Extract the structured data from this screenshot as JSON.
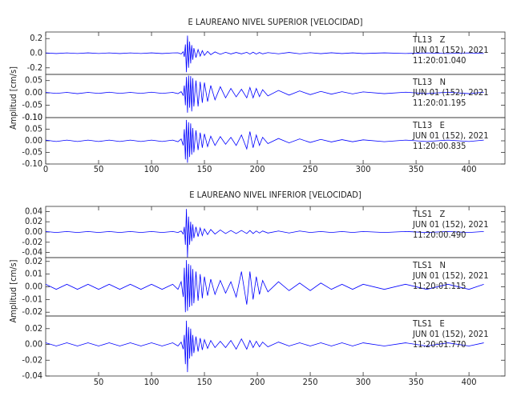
{
  "chart_data": [
    {
      "type": "line",
      "title": "E LAUREANO NIVEL SUPERIOR [VELOCIDAD]",
      "y_label": "Amplitud [cm/s]",
      "x": [
        0,
        10,
        20,
        30,
        40,
        50,
        60,
        70,
        80,
        90,
        100,
        110,
        120,
        125,
        128,
        130,
        131,
        132,
        133,
        134,
        135,
        136,
        137,
        138,
        139,
        140,
        142,
        144,
        146,
        148,
        150,
        153,
        156,
        160,
        165,
        170,
        175,
        180,
        185,
        190,
        193,
        196,
        199,
        202,
        205,
        210,
        220,
        230,
        240,
        250,
        260,
        270,
        280,
        290,
        300,
        320,
        340,
        360,
        380,
        400,
        414
      ],
      "xlim": [
        0,
        434
      ],
      "xticks": [
        0,
        50,
        100,
        150,
        200,
        250,
        300,
        350,
        400
      ],
      "series": [
        {
          "name": "TL13   Z",
          "date": "JUN 01 (152), 2021",
          "time": "11:20:01.040",
          "color": "#0000ff",
          "ylim": [
            -0.29,
            0.29
          ],
          "yticks": [
            0.2,
            {
              "value": 0,
              "label": "0.0"
            },
            -0.2
          ],
          "values": [
            0.004,
            -0.005,
            0.004,
            -0.004,
            0.005,
            -0.004,
            0.004,
            -0.005,
            0.004,
            -0.004,
            0.005,
            -0.005,
            0.004,
            0.005,
            -0.01,
            0.02,
            -0.05,
            0.12,
            -0.26,
            0.24,
            -0.2,
            0.16,
            -0.14,
            0.11,
            -0.09,
            0.07,
            -0.06,
            0.05,
            -0.04,
            0.035,
            -0.03,
            0.025,
            -0.02,
            0.018,
            -0.015,
            0.012,
            -0.01,
            0.01,
            -0.009,
            0.012,
            -0.012,
            0.014,
            -0.012,
            0.01,
            -0.009,
            0.008,
            -0.008,
            0.01,
            -0.008,
            0.007,
            -0.006,
            0.006,
            -0.005,
            0.005,
            -0.005,
            0.005,
            -0.004,
            0.004,
            -0.004,
            0.004,
            -0.004
          ]
        },
        {
          "name": "TL13   N",
          "date": "JUN 01 (152), 2021",
          "time": "11:20:01.195",
          "color": "#0000ff",
          "ylim": [
            -0.1,
            0.075
          ],
          "yticks": [
            0.05,
            {
              "value": 0,
              "label": "0.00"
            },
            -0.05,
            {
              "value": -0.1,
              "label": "-0.10"
            }
          ],
          "values": [
            0.002,
            -0.002,
            0.002,
            -0.003,
            0.002,
            -0.002,
            0.003,
            -0.002,
            0.002,
            -0.002,
            0.003,
            -0.002,
            0.002,
            -0.003,
            0.005,
            -0.01,
            0.03,
            -0.05,
            0.065,
            -0.08,
            0.07,
            -0.06,
            0.068,
            -0.075,
            0.06,
            -0.055,
            0.05,
            -0.055,
            0.045,
            -0.04,
            0.042,
            -0.035,
            0.03,
            -0.028,
            0.025,
            -0.02,
            0.018,
            -0.016,
            0.015,
            -0.02,
            0.022,
            -0.02,
            0.018,
            -0.015,
            0.013,
            -0.012,
            0.01,
            -0.009,
            0.008,
            -0.007,
            0.006,
            -0.005,
            0.005,
            -0.004,
            0.004,
            -0.003,
            0.003,
            -0.003,
            0.003,
            -0.003,
            0.003
          ]
        },
        {
          "name": "TL13   E",
          "date": "JUN 01 (152), 2021",
          "time": "11:20:00.835",
          "color": "#0000ff",
          "ylim": [
            -0.1,
            0.1
          ],
          "yticks": [
            {
              "value": 0.1,
              "label": "0.10"
            },
            0.05,
            {
              "value": 0,
              "label": "0.00"
            },
            -0.05,
            {
              "value": -0.1,
              "label": "-0.10"
            }
          ],
          "values": [
            0.003,
            -0.003,
            0.003,
            -0.003,
            0.003,
            -0.003,
            0.003,
            -0.003,
            0.003,
            -0.003,
            0.003,
            -0.003,
            0.003,
            -0.004,
            0.008,
            -0.02,
            0.05,
            -0.08,
            0.09,
            -0.095,
            0.08,
            -0.07,
            0.075,
            -0.06,
            0.055,
            -0.05,
            0.045,
            -0.04,
            0.035,
            -0.03,
            0.03,
            -0.025,
            0.02,
            -0.02,
            0.018,
            -0.015,
            0.015,
            -0.02,
            0.025,
            -0.035,
            0.04,
            -0.03,
            0.025,
            -0.02,
            0.015,
            -0.012,
            0.01,
            -0.009,
            0.008,
            -0.007,
            0.006,
            -0.005,
            0.005,
            -0.004,
            0.004,
            -0.004,
            0.003,
            -0.003,
            0.003,
            -0.003,
            0.003
          ]
        }
      ]
    },
    {
      "type": "line",
      "title": "E LAUREANO NIVEL INFERIOR [VELOCIDAD]",
      "y_label": "Amplitud [cm/s]",
      "x": [
        0,
        10,
        20,
        30,
        40,
        50,
        60,
        70,
        80,
        90,
        100,
        110,
        120,
        125,
        128,
        130,
        131,
        132,
        133,
        134,
        135,
        136,
        137,
        138,
        139,
        140,
        142,
        144,
        146,
        148,
        150,
        153,
        156,
        160,
        165,
        170,
        175,
        180,
        185,
        190,
        193,
        196,
        199,
        202,
        205,
        210,
        220,
        230,
        240,
        250,
        260,
        270,
        280,
        290,
        300,
        320,
        340,
        360,
        380,
        400,
        414
      ],
      "xlim": [
        0,
        434
      ],
      "xticks": [
        50,
        100,
        150,
        200,
        250,
        300,
        350,
        400
      ],
      "series": [
        {
          "name": "TLS1   Z",
          "date": "JUN 01 (152), 2021",
          "time": "11:20:00.490",
          "color": "#0000ff",
          "ylim": [
            -0.05,
            0.05
          ],
          "yticks": [
            0.04,
            0.02,
            {
              "value": 0,
              "label": "0.00"
            },
            -0.02,
            -0.04
          ],
          "values": [
            0.001,
            -0.001,
            0.001,
            -0.001,
            0.001,
            -0.001,
            0.001,
            -0.001,
            0.001,
            -0.001,
            0.001,
            -0.001,
            0.001,
            -0.001,
            0.002,
            -0.004,
            0.01,
            -0.025,
            0.045,
            -0.05,
            0.03,
            -0.025,
            0.02,
            -0.018,
            0.015,
            -0.012,
            0.01,
            -0.009,
            0.008,
            -0.007,
            0.006,
            -0.005,
            0.005,
            -0.004,
            0.004,
            -0.003,
            0.003,
            -0.003,
            0.003,
            -0.003,
            0.003,
            -0.003,
            0.002,
            -0.002,
            0.002,
            -0.002,
            0.002,
            -0.002,
            0.002,
            -0.001,
            0.001,
            -0.001,
            0.001,
            -0.001,
            0.001,
            -0.001,
            0.001,
            -0.001,
            0.001,
            -0.001,
            0.001
          ]
        },
        {
          "name": "TLS1   N",
          "date": "JUN 01 (152), 2021",
          "time": "11:20:01.115",
          "color": "#0000ff",
          "ylim": [
            -0.023,
            0.023
          ],
          "yticks": [
            0.02,
            0.01,
            {
              "value": 0,
              "label": "0.00"
            },
            -0.01,
            -0.02
          ],
          "values": [
            0.002,
            -0.002,
            0.002,
            -0.002,
            0.002,
            -0.002,
            0.002,
            -0.002,
            0.002,
            -0.002,
            0.002,
            -0.002,
            0.002,
            -0.002,
            0.004,
            -0.008,
            0.015,
            -0.02,
            0.021,
            -0.019,
            0.018,
            -0.016,
            0.017,
            -0.015,
            0.014,
            -0.013,
            0.012,
            -0.011,
            0.01,
            -0.009,
            0.008,
            -0.007,
            0.006,
            -0.006,
            0.005,
            -0.005,
            0.004,
            -0.008,
            0.012,
            -0.014,
            0.012,
            -0.01,
            0.008,
            -0.006,
            0.005,
            -0.004,
            0.004,
            -0.003,
            0.003,
            -0.003,
            0.003,
            -0.002,
            0.002,
            -0.002,
            0.002,
            -0.002,
            0.002,
            -0.002,
            0.002,
            -0.002,
            0.002
          ]
        },
        {
          "name": "TLS1   E",
          "date": "JUN 01 (152), 2021",
          "time": "11:20:01.770",
          "color": "#0000ff",
          "ylim": [
            -0.04,
            0.036
          ],
          "yticks": [
            0.02,
            {
              "value": 0,
              "label": "0.00"
            },
            -0.02,
            -0.04
          ],
          "values": [
            0.002,
            -0.002,
            0.002,
            -0.002,
            0.002,
            -0.002,
            0.002,
            -0.002,
            0.002,
            -0.002,
            0.002,
            -0.002,
            0.002,
            -0.002,
            0.003,
            -0.006,
            0.012,
            -0.025,
            0.03,
            -0.035,
            0.022,
            -0.018,
            0.02,
            -0.015,
            0.012,
            -0.011,
            0.01,
            -0.009,
            0.008,
            -0.007,
            0.006,
            -0.005,
            0.005,
            -0.004,
            0.004,
            -0.004,
            0.005,
            -0.006,
            0.007,
            -0.006,
            0.005,
            -0.004,
            0.004,
            -0.003,
            0.003,
            -0.003,
            0.003,
            -0.002,
            0.002,
            -0.002,
            0.002,
            -0.002,
            0.002,
            -0.002,
            0.002,
            -0.002,
            0.002,
            -0.002,
            0.002,
            -0.002,
            0.002
          ]
        }
      ]
    }
  ]
}
